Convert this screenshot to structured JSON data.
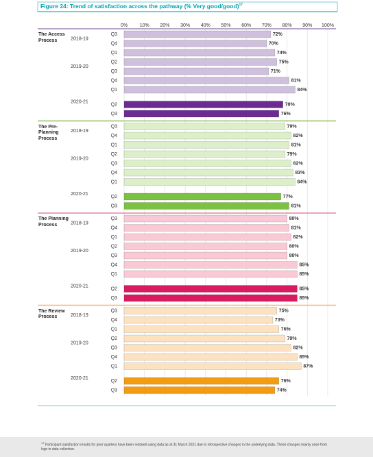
{
  "title": "Figure 24: Trend of satisfaction across the pathway (% Very good/good)",
  "title_note": "17",
  "chart_data": {
    "type": "bar",
    "orientation": "horizontal",
    "xlim": [
      0,
      100
    ],
    "xticks": [
      {
        "value": 0,
        "label": "0%"
      },
      {
        "value": 10,
        "label": "10%"
      },
      {
        "value": 20,
        "label": "20%"
      },
      {
        "value": 30,
        "label": "30%"
      },
      {
        "value": 40,
        "label": "40%"
      },
      {
        "value": 50,
        "label": "50%"
      },
      {
        "value": 60,
        "label": "60%"
      },
      {
        "value": 70,
        "label": "70%"
      },
      {
        "value": 80,
        "label": "80%"
      },
      {
        "value": 90,
        "label": "90%"
      },
      {
        "value": 100,
        "label": "100%"
      }
    ],
    "grid": true,
    "groups": [
      {
        "title": "The Access Process",
        "line_color": "#9d86b5",
        "year_labels": [
          "2018-19",
          null,
          "2019-20",
          null,
          null,
          null,
          "2020-21",
          null,
          null
        ],
        "categories": [
          "Q3",
          "Q4",
          "Q1",
          "Q2",
          "Q3",
          "Q4",
          "Q1",
          "Q2",
          "Q3"
        ],
        "values": [
          72,
          70,
          74,
          75,
          71,
          81,
          84,
          78,
          76
        ],
        "value_labels": [
          "72%",
          "70%",
          "74%",
          "75%",
          "71%",
          "81%",
          "84%",
          "78%",
          "76%"
        ],
        "colors": [
          "#cfc0dd",
          "#cfc0dd",
          "#cfc0dd",
          "#cfc0dd",
          "#cfc0dd",
          "#cfc0dd",
          "#cfc0dd",
          "#6a2c91",
          "#6a2c91"
        ]
      },
      {
        "title": "The Pre-Planning Process",
        "line_color": "#8fc25c",
        "year_labels": [
          "2018-19",
          null,
          "2019-20",
          null,
          null,
          null,
          "2020-21",
          null,
          null
        ],
        "categories": [
          "Q3",
          "Q4",
          "Q1",
          "Q2",
          "Q3",
          "Q4",
          "Q1",
          "Q2",
          "Q3"
        ],
        "values": [
          79,
          82,
          81,
          79,
          82,
          83,
          84,
          77,
          81
        ],
        "value_labels": [
          "79%",
          "82%",
          "81%",
          "79%",
          "82%",
          "83%",
          "84%",
          "77%",
          "81%"
        ],
        "colors": [
          "#dcefc8",
          "#dcefc8",
          "#dcefc8",
          "#dcefc8",
          "#dcefc8",
          "#dcefc8",
          "#dcefc8",
          "#7cc242",
          "#7cc242"
        ]
      },
      {
        "title": "The Planning Process",
        "line_color": "#e685a0",
        "year_labels": [
          "2018-19",
          null,
          "2019-20",
          null,
          null,
          null,
          "2020-21",
          null,
          null
        ],
        "categories": [
          "Q3",
          "Q4",
          "Q1",
          "Q2",
          "Q3",
          "Q4",
          "Q1",
          "Q2",
          "Q3"
        ],
        "values": [
          80,
          81,
          82,
          80,
          80,
          85,
          85,
          85,
          85
        ],
        "value_labels": [
          "80%",
          "81%",
          "82%",
          "80%",
          "80%",
          "85%",
          "85%",
          "85%",
          "85%"
        ],
        "colors": [
          "#f9c9d5",
          "#f9c9d5",
          "#f9c9d5",
          "#f9c9d5",
          "#f9c9d5",
          "#f9c9d5",
          "#f9c9d5",
          "#d81b60",
          "#d81b60"
        ]
      },
      {
        "title": "The Review Process",
        "line_color": "#f5b673",
        "year_labels": [
          "2018-19",
          null,
          "2019-20",
          null,
          null,
          null,
          "2020-21",
          null,
          null
        ],
        "categories": [
          "Q3",
          "Q4",
          "Q1",
          "Q2",
          "Q3",
          "Q4",
          "Q1",
          "Q2",
          "Q3"
        ],
        "values": [
          75,
          73,
          76,
          79,
          82,
          85,
          87,
          76,
          74
        ],
        "value_labels": [
          "75%",
          "73%",
          "76%",
          "79%",
          "82%",
          "85%",
          "87%",
          "76%",
          "74%"
        ],
        "colors": [
          "#fde2c1",
          "#fde2c1",
          "#fde2c1",
          "#fde2c1",
          "#fde2c1",
          "#fde2c1",
          "#fde2c1",
          "#f39c12",
          "#f39c12"
        ]
      }
    ]
  },
  "footnote_note": "17",
  "footnote": "Participant satisfaction results for prior quarters have been restated using data as at 31 March 2021 due to retrospective changes in the underlying data. These changes mainly arise from logs in data collection."
}
